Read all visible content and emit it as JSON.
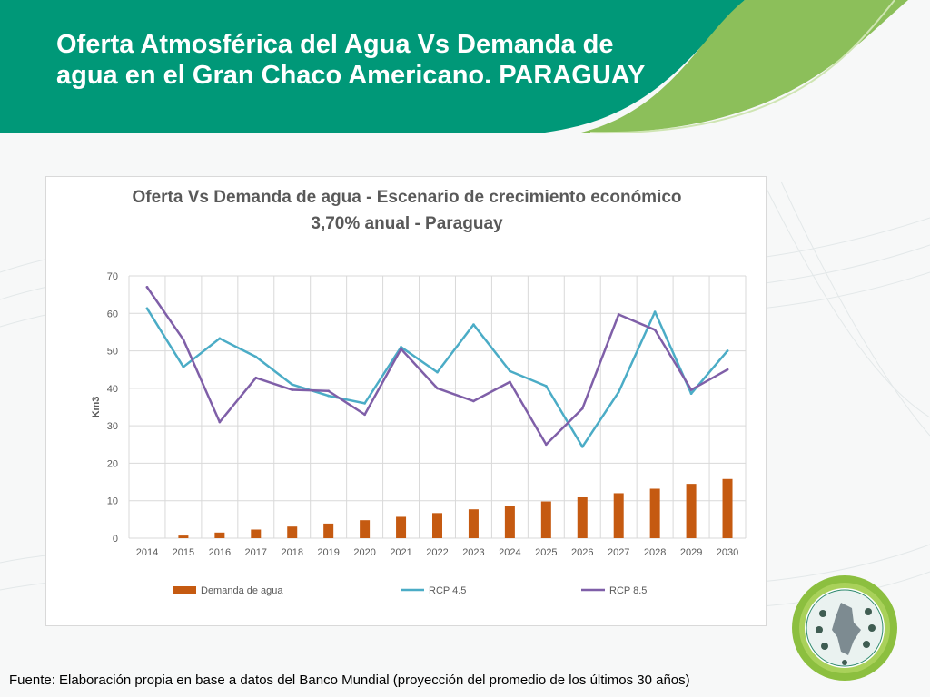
{
  "slide": {
    "title_line1": "Oferta Atmosférica del Agua Vs Demanda de",
    "title_line2": "agua en el Gran Chaco Americano. PARAGUAY"
  },
  "colors": {
    "header_teal": "#009878",
    "header_green": "#8cbf5a",
    "bar": "#c55a11",
    "rcp45": "#4bacc6",
    "rcp85": "#7f5fa8"
  },
  "chart_data": {
    "type": "bar",
    "title_line1": "Oferta Vs Demanda de agua - Escenario de crecimiento económico",
    "title_line2": "3,70% anual - Paraguay",
    "xlabel": "",
    "ylabel": "Km3",
    "ylim": [
      0,
      70
    ],
    "yticks": [
      0,
      10,
      20,
      30,
      40,
      50,
      60,
      70
    ],
    "grid": true,
    "legend_position": "bottom",
    "categories": [
      "2014",
      "2015",
      "2016",
      "2017",
      "2018",
      "2019",
      "2020",
      "2021",
      "2022",
      "2023",
      "2024",
      "2025",
      "2026",
      "2027",
      "2028",
      "2029",
      "2030"
    ],
    "series": [
      {
        "name": "Demanda de agua",
        "kind": "bar",
        "color": "#c55a11",
        "values": [
          0,
          0.7,
          1.5,
          2.3,
          3.1,
          3.9,
          4.8,
          5.7,
          6.7,
          7.7,
          8.7,
          9.8,
          10.9,
          12.0,
          13.2,
          14.5,
          15.8
        ]
      },
      {
        "name": "RCP 4.5",
        "kind": "line",
        "color": "#4bacc6",
        "values": [
          61.3,
          45.7,
          53.3,
          48.4,
          41.0,
          38.0,
          36.0,
          51.0,
          44.3,
          57.0,
          44.6,
          40.6,
          24.4,
          39.0,
          60.4,
          38.6,
          50.0
        ]
      },
      {
        "name": "RCP 8.5",
        "kind": "line",
        "color": "#7f5fa8",
        "values": [
          67.0,
          53.0,
          31.0,
          42.8,
          39.6,
          39.3,
          33.0,
          50.5,
          40.0,
          36.6,
          41.7,
          25.0,
          34.6,
          59.7,
          55.6,
          39.6,
          45.0
        ]
      }
    ]
  },
  "footer": {
    "source": "Fuente: Elaboración propia en base a datos del Banco Mundial (proyección del promedio de los últimos 30 años)"
  }
}
